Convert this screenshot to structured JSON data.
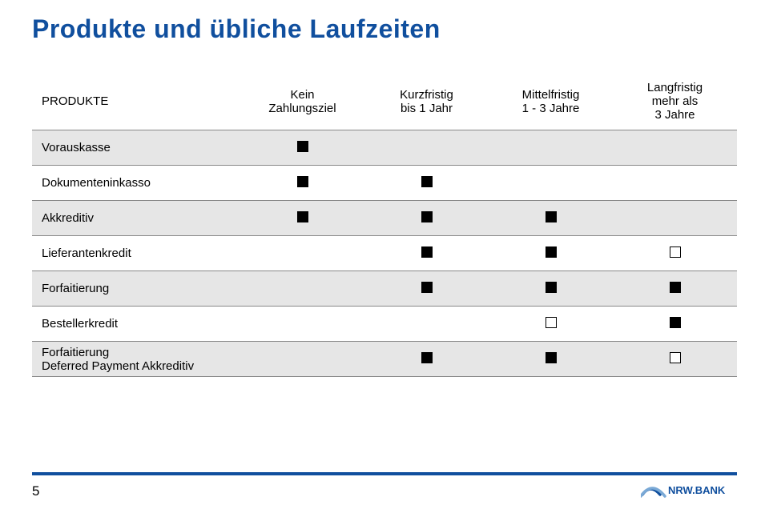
{
  "title": "Produkte und übliche Laufzeiten",
  "colors": {
    "brand_blue": "#104f9e",
    "shaded_row": "#e2e2e2",
    "border": "#888888"
  },
  "columns": {
    "c0": "PRODUKTE",
    "c1": "Kein\nZahlungsziel",
    "c2": "Kurzfristig\nbis 1 Jahr",
    "c3": "Mittelfristig\n1 - 3 Jahre",
    "c4": "Langfristig\nmehr als\n3 Jahre"
  },
  "rows": [
    {
      "label": "Vorauskasse",
      "cells": [
        "filled",
        "",
        "",
        ""
      ],
      "shaded": true
    },
    {
      "label": "Dokumenteninkasso",
      "cells": [
        "filled",
        "filled",
        "",
        ""
      ],
      "shaded": false
    },
    {
      "label": "Akkreditiv",
      "cells": [
        "filled",
        "filled",
        "filled",
        ""
      ],
      "shaded": true
    },
    {
      "label": "Lieferantenkredit",
      "cells": [
        "",
        "filled",
        "filled",
        "empty"
      ],
      "shaded": false
    },
    {
      "label": "Forfaitierung",
      "cells": [
        "",
        "filled",
        "filled",
        "filled"
      ],
      "shaded": true
    },
    {
      "label": "Bestellerkredit",
      "cells": [
        "",
        "",
        "empty",
        "filled"
      ],
      "shaded": false
    },
    {
      "label": "Forfaitierung\nDeferred Payment Akkreditiv",
      "cells": [
        "",
        "filled",
        "filled",
        "empty"
      ],
      "shaded": true
    }
  ],
  "pagenum": "5",
  "logo_text": "NRW.BANK"
}
